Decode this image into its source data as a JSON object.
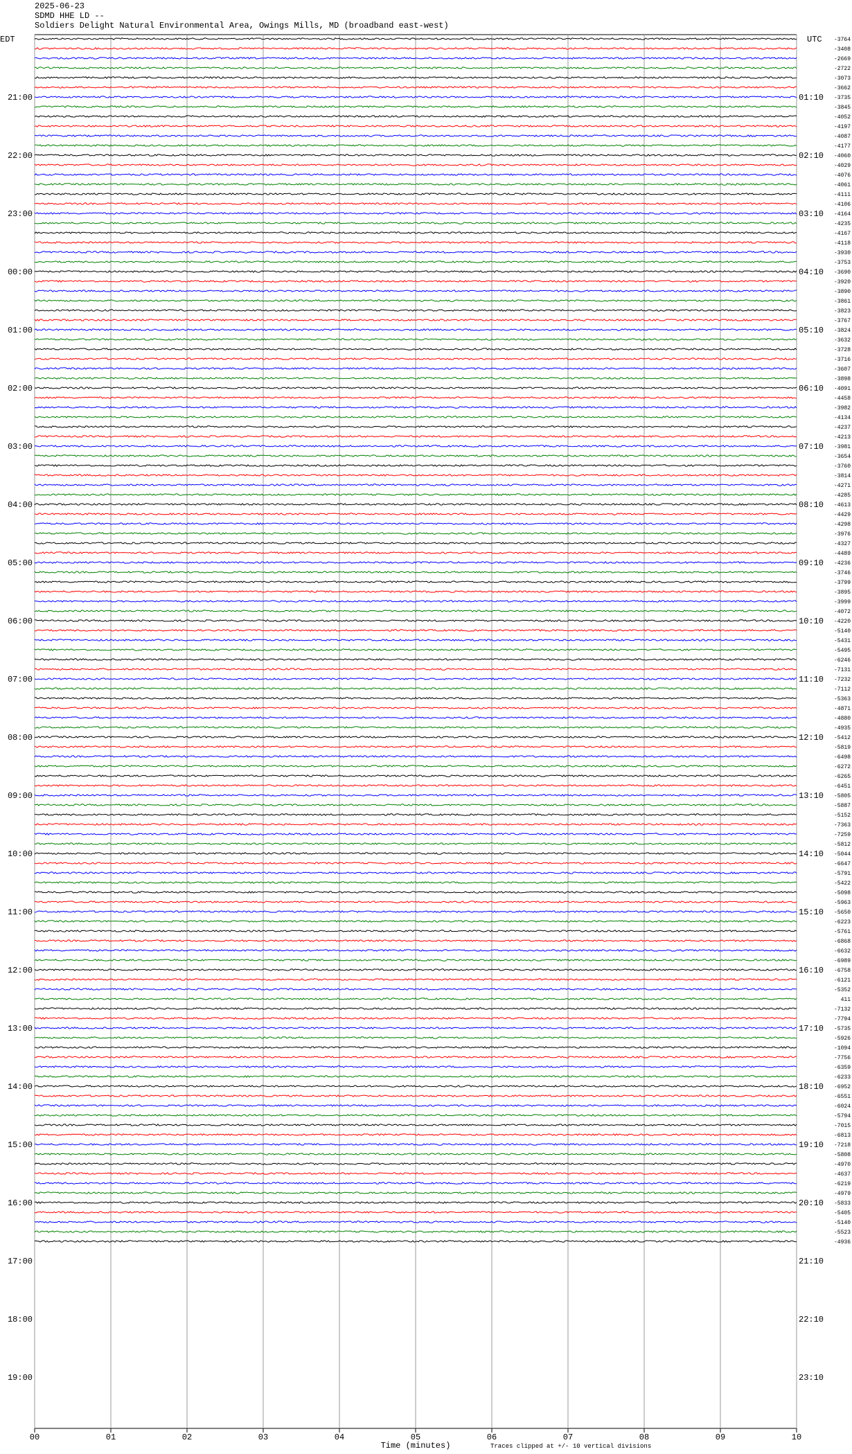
{
  "chart_data": {
    "type": "helicorder",
    "date": "2025-06-23",
    "station": "SDMD HHE LD --",
    "title": "Soldiers Delight Natural Environmental Area, Owings Mills, MD (broadband east-west)",
    "left_zone": "EDT",
    "right_zone": "UTC",
    "left_labels": [
      "21:00",
      "22:00",
      "23:00",
      "00:00",
      "01:00",
      "02:00",
      "03:00",
      "04:00",
      "05:00",
      "06:00",
      "07:00",
      "08:00",
      "09:00",
      "10:00",
      "11:00",
      "12:00",
      "13:00",
      "14:00",
      "15:00",
      "16:00",
      "17:00",
      "18:00",
      "19:00"
    ],
    "right_labels": [
      "01:10",
      "02:10",
      "03:10",
      "04:10",
      "05:10",
      "06:10",
      "07:10",
      "08:10",
      "09:10",
      "10:10",
      "11:10",
      "12:10",
      "13:10",
      "14:10",
      "15:10",
      "16:10",
      "17:10",
      "18:10",
      "19:10",
      "20:10",
      "21:10",
      "22:10",
      "23:10"
    ],
    "trace_offsets": [
      -3764,
      -3408,
      -2669,
      -2722,
      -3073,
      -3662,
      -3735,
      -3845,
      -4052,
      -4197,
      -4087,
      -4177,
      -4060,
      -4029,
      -4076,
      -4061,
      -4111,
      -4106,
      -4164,
      -4235,
      -4167,
      -4118,
      -3930,
      -3753,
      -3690,
      -3920,
      -3890,
      -3861,
      -3823,
      -3767,
      -3824,
      -3632,
      -3728,
      -3716,
      -3607,
      -3898,
      -4091,
      -4458,
      -3982,
      -4134,
      -4237,
      -4213,
      -3981,
      -3654,
      -3760,
      -3814,
      -4271,
      -4285,
      -4613,
      -4429,
      -4298,
      -3976,
      -4327,
      -4489,
      -4236,
      -3746,
      -3799,
      -3895,
      -3999,
      -4072,
      -4220,
      -5140,
      -5431,
      -5495,
      -6246,
      -7131,
      -7232,
      -7112,
      -5363,
      -4871,
      -4880,
      -4935,
      -5412,
      -5819,
      -6498,
      -6272,
      -6265,
      -6451,
      -5805,
      -5887,
      -5152,
      -7363,
      -7259,
      -5812,
      -5044,
      -6647,
      -5791,
      -5422,
      -5098,
      -5963,
      -5650,
      -6223,
      -5761,
      -6868,
      -6632,
      -6989,
      -6758,
      -6121,
      -5352,
      411,
      -7132,
      -7794,
      -5735,
      -5926,
      -1094,
      -7756,
      -6359,
      -6233,
      -6952,
      -6551,
      -6024,
      -5794,
      -7015,
      -6813,
      -7218,
      -5808,
      -4970,
      -4637,
      -6219,
      -4979,
      -5833,
      -5405,
      -5140,
      -5523,
      -4936
    ],
    "trace_colors": [
      "#000000",
      "#ff0000",
      "#0000ff",
      "#008000"
    ],
    "xlim": [
      0,
      10
    ],
    "xticks": [
      {
        "value": 0,
        "label": "00"
      },
      {
        "value": 1,
        "label": "01"
      },
      {
        "value": 2,
        "label": "02"
      },
      {
        "value": 3,
        "label": "03"
      },
      {
        "value": 4,
        "label": "04"
      },
      {
        "value": 5,
        "label": "05"
      },
      {
        "value": 6,
        "label": "06"
      },
      {
        "value": 7,
        "label": "07"
      },
      {
        "value": 8,
        "label": "08"
      },
      {
        "value": 9,
        "label": "09"
      },
      {
        "value": 10,
        "label": "10"
      }
    ],
    "xlabel": "Time (minutes)",
    "note": "Traces clipped at +/- 10 vertical divisions",
    "grid": true
  }
}
